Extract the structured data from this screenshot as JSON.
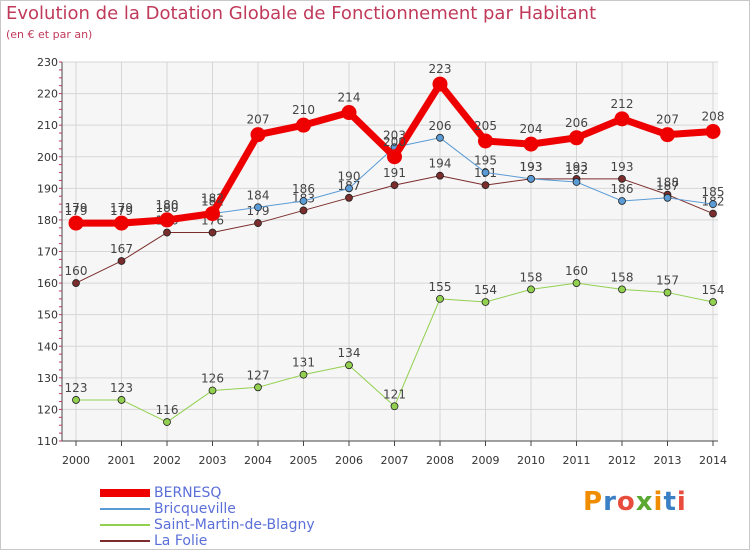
{
  "chart_data": {
    "type": "line",
    "title": "Evolution de la Dotation Globale de Fonctionnement par Habitant",
    "subtitle": "(en € et par an)",
    "x": [
      "2000",
      "2001",
      "2002",
      "2003",
      "2004",
      "2005",
      "2006",
      "2007",
      "2008",
      "2009",
      "2010",
      "2011",
      "2012",
      "2013",
      "2014"
    ],
    "ylim": [
      110,
      230
    ],
    "yticks": [
      110,
      120,
      130,
      140,
      150,
      160,
      170,
      180,
      190,
      200,
      210,
      220,
      230
    ],
    "grid": true,
    "legend_position": "bottom-left",
    "series": [
      {
        "name": "BERNESQ",
        "color": "#ee0000",
        "values": [
          179,
          179,
          180,
          182,
          207,
          210,
          214,
          200,
          223,
          205,
          204,
          206,
          212,
          207,
          208
        ]
      },
      {
        "name": "Bricqueville",
        "color": "#5b9bd5",
        "values": [
          179,
          179,
          180,
          182,
          184,
          186,
          190,
          203,
          206,
          195,
          193,
          192,
          186,
          187,
          185
        ]
      },
      {
        "name": "Saint-Martin-de-Blagny",
        "color": "#92d050",
        "values": [
          123,
          123,
          116,
          126,
          127,
          131,
          134,
          121,
          155,
          154,
          158,
          160,
          158,
          157,
          154
        ]
      },
      {
        "name": "La Folie",
        "color": "#7b2c2c",
        "values": [
          160,
          167,
          176,
          176,
          179,
          183,
          187,
          191,
          194,
          191,
          193,
          193,
          193,
          188,
          182
        ]
      }
    ]
  },
  "logo": {
    "text": "Proxiti",
    "colors": [
      "#f08c00",
      "#3b7fc4",
      "#e84c3d",
      "#5aa832",
      "#f08c00",
      "#3b7fc4",
      "#e84c3d"
    ]
  }
}
